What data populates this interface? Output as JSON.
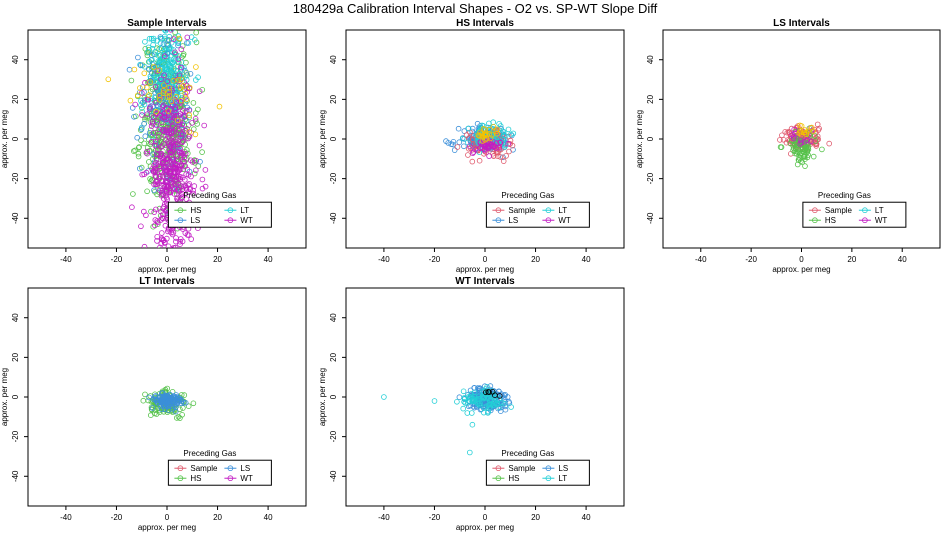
{
  "title": "180429a   Calibration Interval Shapes - O2 vs. SP-WT Slope Diff",
  "colors": {
    "Sample": "#e05a6d",
    "HS": "#55c24a",
    "LS": "#3b8fd9",
    "LT": "#22cfd6",
    "WT": "#c21dc4",
    "Other": "#f2c200",
    "Black": "#000000"
  },
  "chart_data": [
    {
      "type": "scatter",
      "title": "Sample Intervals",
      "xlabel": "approx. per meg",
      "ylabel": "approx. per meg",
      "xlim": [
        -55,
        55
      ],
      "ylim": [
        -55,
        55
      ],
      "xticks": [
        -40,
        -20,
        0,
        20,
        40
      ],
      "yticks": [
        -40,
        -20,
        0,
        20,
        40
      ],
      "legend": {
        "title": "Preceding Gas",
        "placement": "bottom-right",
        "entries": [
          "HS",
          "LT",
          "LS",
          "WT"
        ]
      },
      "series": [
        {
          "name": "HS",
          "cx": 0,
          "cy": 10,
          "sx": 5,
          "sy": 22,
          "n": 480,
          "seed": 11
        },
        {
          "name": "LT",
          "cx": 0,
          "cy": 32,
          "sx": 4,
          "sy": 14,
          "n": 240,
          "seed": 12
        },
        {
          "name": "LS",
          "cx": -1,
          "cy": 14,
          "sx": 6,
          "sy": 20,
          "n": 110,
          "seed": 13
        },
        {
          "name": "WT",
          "cx": 2,
          "cy": -15,
          "sx": 5,
          "sy": 26,
          "n": 480,
          "seed": 14
        },
        {
          "name": "Other",
          "cx": 2,
          "cy": 25,
          "sx": 8,
          "sy": 10,
          "n": 40,
          "seed": 15
        }
      ]
    },
    {
      "type": "scatter",
      "title": "HS Intervals",
      "xlabel": "approx. per meg",
      "ylabel": "approx. per meg",
      "xlim": [
        -55,
        55
      ],
      "ylim": [
        -55,
        55
      ],
      "xticks": [
        -40,
        -20,
        0,
        20,
        40
      ],
      "yticks": [
        -40,
        -20,
        0,
        20,
        40
      ],
      "legend": {
        "title": "Preceding Gas",
        "placement": "bottom-right",
        "entries": [
          "Sample",
          "LT",
          "LS",
          "WT"
        ]
      },
      "series": [
        {
          "name": "LS",
          "cx": 0,
          "cy": 0,
          "sx": 5,
          "sy": 3,
          "n": 150,
          "seed": 21
        },
        {
          "name": "Sample",
          "cx": 1,
          "cy": -3,
          "sx": 4,
          "sy": 3,
          "n": 100,
          "seed": 22
        },
        {
          "name": "LT",
          "cx": 2,
          "cy": 1,
          "sx": 4,
          "sy": 3,
          "n": 60,
          "seed": 23
        },
        {
          "name": "WT",
          "cx": 0,
          "cy": -4,
          "sx": 3,
          "sy": 2,
          "n": 40,
          "seed": 24
        },
        {
          "name": "Other",
          "cx": 1,
          "cy": 2,
          "sx": 2,
          "sy": 1.5,
          "n": 25,
          "seed": 25
        }
      ]
    },
    {
      "type": "scatter",
      "title": "LS Intervals",
      "xlabel": "approx. per meg",
      "ylabel": "approx. per meg",
      "xlim": [
        -55,
        55
      ],
      "ylim": [
        -55,
        55
      ],
      "xticks": [
        -40,
        -20,
        0,
        20,
        40
      ],
      "yticks": [
        -40,
        -20,
        0,
        20,
        40
      ],
      "legend": {
        "title": "Preceding Gas",
        "placement": "bottom-right",
        "entries": [
          "Sample",
          "LT",
          "HS",
          "WT"
        ]
      },
      "series": [
        {
          "name": "Sample",
          "cx": 0,
          "cy": 0,
          "sx": 4,
          "sy": 3,
          "n": 120,
          "seed": 31
        },
        {
          "name": "HS",
          "cx": 0,
          "cy": -4,
          "sx": 3,
          "sy": 4,
          "n": 80,
          "seed": 32
        },
        {
          "name": "WT",
          "cx": 0,
          "cy": 1,
          "sx": 2,
          "sy": 2,
          "n": 20,
          "seed": 33
        },
        {
          "name": "Other",
          "cx": 1,
          "cy": 4,
          "sx": 1.5,
          "sy": 1.5,
          "n": 15,
          "seed": 34
        }
      ]
    },
    {
      "type": "scatter",
      "title": "LT Intervals",
      "xlabel": "approx. per meg",
      "ylabel": "approx. per meg",
      "xlim": [
        -55,
        55
      ],
      "ylim": [
        -55,
        55
      ],
      "xticks": [
        -40,
        -20,
        0,
        20,
        40
      ],
      "yticks": [
        -40,
        -20,
        0,
        20,
        40
      ],
      "legend": {
        "title": "Preceding Gas",
        "placement": "bottom-right",
        "entries": [
          "Sample",
          "LS",
          "HS",
          "WT"
        ]
      },
      "series": [
        {
          "name": "HS",
          "cx": 0,
          "cy": -3,
          "sx": 4,
          "sy": 3,
          "n": 120,
          "seed": 41
        },
        {
          "name": "LS",
          "cx": 0,
          "cy": -2,
          "sx": 3,
          "sy": 2,
          "n": 110,
          "seed": 42
        }
      ]
    },
    {
      "type": "scatter",
      "title": "WT Intervals",
      "xlabel": "approx. per meg",
      "ylabel": "approx. per meg",
      "xlim": [
        -55,
        55
      ],
      "ylim": [
        -55,
        55
      ],
      "xticks": [
        -40,
        -20,
        0,
        20,
        40
      ],
      "yticks": [
        -40,
        -20,
        0,
        20,
        40
      ],
      "legend": {
        "title": "Preceding Gas",
        "placement": "bottom-right",
        "entries": [
          "Sample",
          "LS",
          "HS",
          "LT"
        ]
      },
      "series": [
        {
          "name": "LS",
          "cx": 0,
          "cy": -1,
          "sx": 4,
          "sy": 3,
          "n": 180,
          "seed": 51
        },
        {
          "name": "LT",
          "cx": -1,
          "cy": -2,
          "sx": 4,
          "sy": 3,
          "n": 80,
          "seed": 52
        },
        {
          "name": "Black",
          "cx": 3,
          "cy": 2,
          "sx": 2,
          "sy": 1,
          "n": 6,
          "seed": 53
        }
      ],
      "outliers": [
        {
          "series": "LT",
          "x": -40,
          "y": 0
        },
        {
          "series": "LT",
          "x": -20,
          "y": -2
        },
        {
          "series": "LT",
          "x": -6,
          "y": -28
        },
        {
          "series": "LT",
          "x": -5,
          "y": -14
        },
        {
          "series": "LS",
          "x": 9,
          "y": 0
        }
      ]
    }
  ]
}
